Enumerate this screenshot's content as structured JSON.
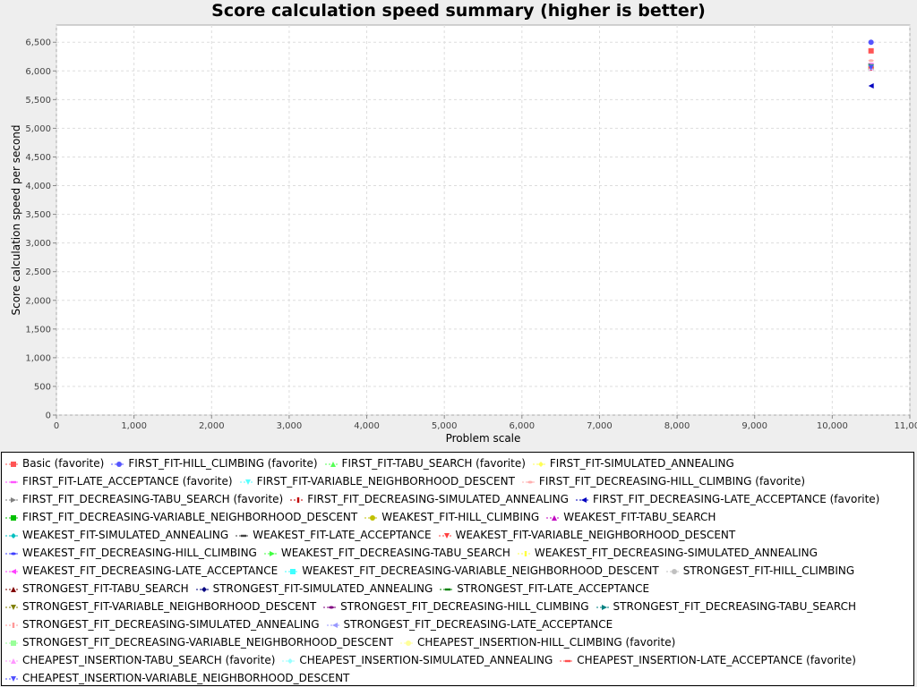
{
  "chart_data": {
    "type": "scatter",
    "title": "Score calculation speed summary (higher is better)",
    "xlabel": "Problem scale",
    "ylabel": "Score calculation speed per second",
    "xlim": [
      0,
      11000
    ],
    "ylim": [
      0,
      6800
    ],
    "x_ticks": [
      "0",
      "1,000",
      "2,000",
      "3,000",
      "4,000",
      "5,000",
      "6,000",
      "7,000",
      "8,000",
      "9,000",
      "10,000",
      "11,000"
    ],
    "y_ticks": [
      "0",
      "500",
      "1,000",
      "1,500",
      "2,000",
      "2,500",
      "3,000",
      "3,500",
      "4,000",
      "4,500",
      "5,000",
      "5,500",
      "6,000",
      "6,500"
    ],
    "grid": true,
    "legend_position": "bottom",
    "series": [
      {
        "name": "Basic (favorite)",
        "color": "#ff5555",
        "marker": "square",
        "x": 10500,
        "y": 6350
      },
      {
        "name": "FIRST_FIT-HILL_CLIMBING (favorite)",
        "color": "#5555ff",
        "marker": "circle",
        "x": 10500,
        "y": 6500
      },
      {
        "name": "FIRST_FIT-TABU_SEARCH (favorite)",
        "color": "#55ff55",
        "marker": "triangle-up",
        "x": 10500,
        "y": 6080
      },
      {
        "name": "FIRST_FIT-SIMULATED_ANNEALING",
        "color": "#ffff55",
        "marker": "diamond",
        "x": 10500,
        "y": 6060
      },
      {
        "name": "FIRST_FIT-LATE_ACCEPTANCE (favorite)",
        "color": "#ff55ff",
        "marker": "rect-h",
        "x": 10500,
        "y": 6120
      },
      {
        "name": "FIRST_FIT-VARIABLE_NEIGHBORHOOD_DESCENT",
        "color": "#55ffff",
        "marker": "triangle-down",
        "x": 10500,
        "y": 6070
      },
      {
        "name": "FIRST_FIT_DECREASING-HILL_CLIMBING (favorite)",
        "color": "#ffafaf",
        "marker": "ellipse-h",
        "x": 10500,
        "y": 6180
      },
      {
        "name": "FIRST_FIT_DECREASING-TABU_SEARCH (favorite)",
        "color": "#808080",
        "marker": "triangle-right",
        "x": 10500,
        "y": 6090
      },
      {
        "name": "FIRST_FIT_DECREASING-SIMULATED_ANNEALING",
        "color": "#c00000",
        "marker": "rect-v",
        "x": 10500,
        "y": 6050
      },
      {
        "name": "FIRST_FIT_DECREASING-LATE_ACCEPTANCE (favorite)",
        "color": "#0000c0",
        "marker": "triangle-left",
        "x": 10500,
        "y": 5740
      },
      {
        "name": "FIRST_FIT_DECREASING-VARIABLE_NEIGHBORHOOD_DESCENT",
        "color": "#00c000",
        "marker": "square",
        "x": 10500,
        "y": 6070
      },
      {
        "name": "WEAKEST_FIT-HILL_CLIMBING",
        "color": "#c0c000",
        "marker": "circle",
        "x": 10500,
        "y": 6060
      },
      {
        "name": "WEAKEST_FIT-TABU_SEARCH",
        "color": "#c000c0",
        "marker": "triangle-up",
        "x": 10500,
        "y": 6060
      },
      {
        "name": "WEAKEST_FIT-SIMULATED_ANNEALING",
        "color": "#00c0c0",
        "marker": "diamond",
        "x": 10500,
        "y": 6060
      },
      {
        "name": "WEAKEST_FIT-LATE_ACCEPTANCE",
        "color": "#404040",
        "marker": "rect-h",
        "x": 10500,
        "y": 6060
      },
      {
        "name": "WEAKEST_FIT-VARIABLE_NEIGHBORHOOD_DESCENT",
        "color": "#ff4040",
        "marker": "triangle-down",
        "x": 10500,
        "y": 6060
      },
      {
        "name": "WEAKEST_FIT_DECREASING-HILL_CLIMBING",
        "color": "#4040ff",
        "marker": "ellipse-h",
        "x": 10500,
        "y": 6060
      },
      {
        "name": "WEAKEST_FIT_DECREASING-TABU_SEARCH",
        "color": "#40ff40",
        "marker": "triangle-right",
        "x": 10500,
        "y": 6060
      },
      {
        "name": "WEAKEST_FIT_DECREASING-SIMULATED_ANNEALING",
        "color": "#ffff40",
        "marker": "rect-v",
        "x": 10500,
        "y": 6060
      },
      {
        "name": "WEAKEST_FIT_DECREASING-LATE_ACCEPTANCE",
        "color": "#ff40ff",
        "marker": "triangle-left",
        "x": 10500,
        "y": 6060
      },
      {
        "name": "WEAKEST_FIT_DECREASING-VARIABLE_NEIGHBORHOOD_DESCENT",
        "color": "#40ffff",
        "marker": "square",
        "x": 10500,
        "y": 6060
      },
      {
        "name": "STRONGEST_FIT-HILL_CLIMBING",
        "color": "#c0c0c0",
        "marker": "circle",
        "x": 10500,
        "y": 6060
      },
      {
        "name": "STRONGEST_FIT-TABU_SEARCH",
        "color": "#800000",
        "marker": "triangle-up",
        "x": 10500,
        "y": 6060
      },
      {
        "name": "STRONGEST_FIT-SIMULATED_ANNEALING",
        "color": "#000080",
        "marker": "diamond",
        "x": 10500,
        "y": 6060
      },
      {
        "name": "STRONGEST_FIT-LATE_ACCEPTANCE",
        "color": "#008000",
        "marker": "rect-h",
        "x": 10500,
        "y": 6060
      },
      {
        "name": "STRONGEST_FIT-VARIABLE_NEIGHBORHOOD_DESCENT",
        "color": "#808000",
        "marker": "triangle-down",
        "x": 10500,
        "y": 6060
      },
      {
        "name": "STRONGEST_FIT_DECREASING-HILL_CLIMBING",
        "color": "#800080",
        "marker": "ellipse-h",
        "x": 10500,
        "y": 6060
      },
      {
        "name": "STRONGEST_FIT_DECREASING-TABU_SEARCH",
        "color": "#008080",
        "marker": "triangle-right",
        "x": 10500,
        "y": 6060
      },
      {
        "name": "STRONGEST_FIT_DECREASING-SIMULATED_ANNEALING",
        "color": "#ff9999",
        "marker": "rect-v",
        "x": 10500,
        "y": 6060
      },
      {
        "name": "STRONGEST_FIT_DECREASING-LATE_ACCEPTANCE",
        "color": "#9999ff",
        "marker": "triangle-left",
        "x": 10500,
        "y": 6060
      },
      {
        "name": "STRONGEST_FIT_DECREASING-VARIABLE_NEIGHBORHOOD_DESCENT",
        "color": "#99ff99",
        "marker": "square",
        "x": 10500,
        "y": 6060
      },
      {
        "name": "CHEAPEST_INSERTION-HILL_CLIMBING (favorite)",
        "color": "#ffff99",
        "marker": "circle",
        "x": 10500,
        "y": 6060
      },
      {
        "name": "CHEAPEST_INSERTION-TABU_SEARCH (favorite)",
        "color": "#ff99ff",
        "marker": "triangle-up",
        "x": 10500,
        "y": 6060
      },
      {
        "name": "CHEAPEST_INSERTION-SIMULATED_ANNEALING",
        "color": "#99ffff",
        "marker": "diamond",
        "x": 10500,
        "y": 6060
      },
      {
        "name": "CHEAPEST_INSERTION-LATE_ACCEPTANCE (favorite)",
        "color": "#ff5050",
        "marker": "rect-h",
        "x": 10500,
        "y": 6060
      },
      {
        "name": "CHEAPEST_INSERTION-VARIABLE_NEIGHBORHOOD_DESCENT",
        "color": "#5050ff",
        "marker": "triangle-down",
        "x": 10500,
        "y": 6060
      }
    ],
    "legend_rows": [
      [
        0,
        1,
        2,
        3
      ],
      [
        4,
        5,
        6
      ],
      [
        7,
        8,
        9
      ],
      [
        10,
        11,
        12
      ],
      [
        13,
        14,
        15
      ],
      [
        16,
        17,
        18
      ],
      [
        19,
        20,
        21
      ],
      [
        22,
        23,
        24
      ],
      [
        25,
        26,
        27
      ],
      [
        28,
        29
      ],
      [
        30,
        31
      ],
      [
        32,
        33,
        34
      ],
      [
        35
      ]
    ]
  }
}
